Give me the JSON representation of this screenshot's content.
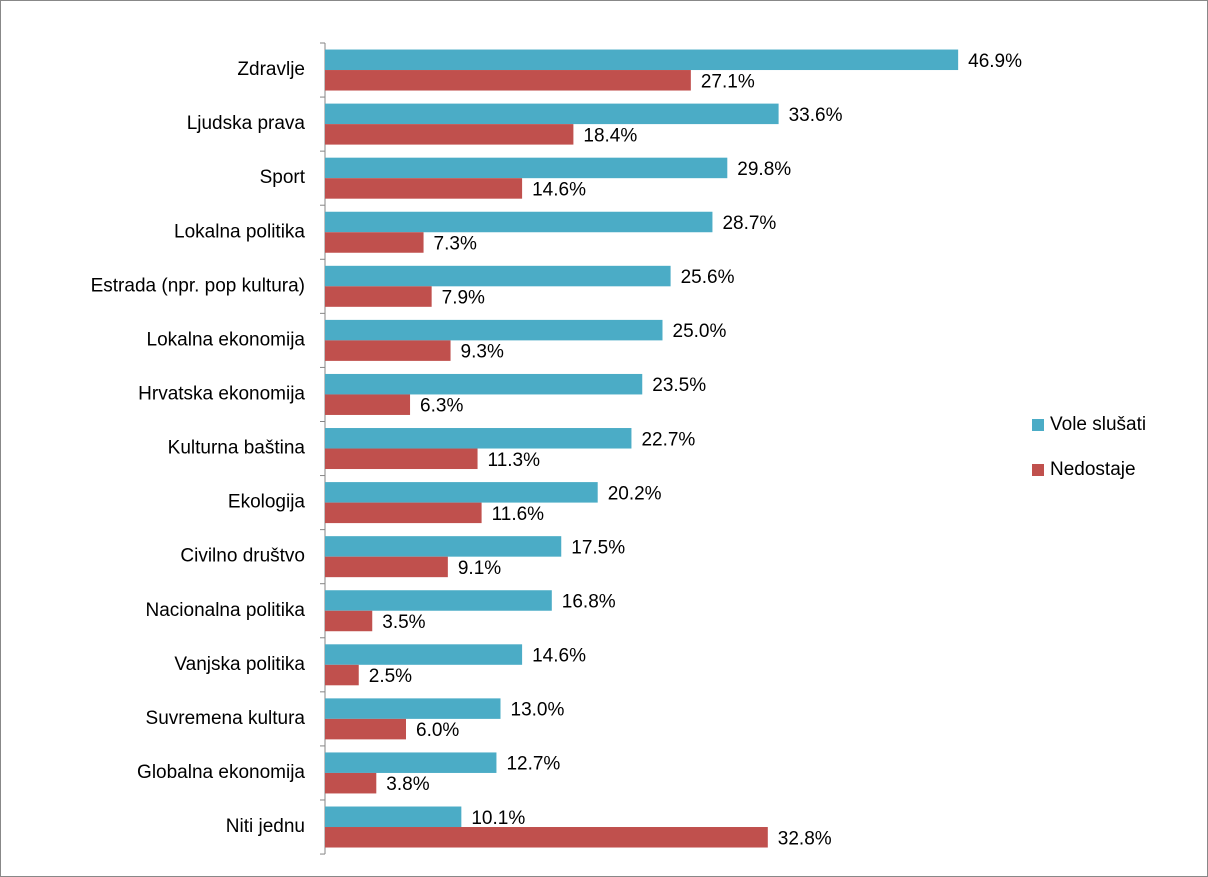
{
  "chart_data": {
    "type": "bar",
    "orientation": "horizontal",
    "categories": [
      "Zdravlje",
      "Ljudska prava",
      "Sport",
      "Lokalna politika",
      "Estrada (npr. pop kultura)",
      "Lokalna ekonomija",
      "Hrvatska ekonomija",
      "Kulturna baština",
      "Ekologija",
      "Civilno društvo",
      "Nacionalna politika",
      "Vanjska politika",
      "Suvremena kultura",
      "Globalna ekonomija",
      "Niti jednu"
    ],
    "series": [
      {
        "name": "Vole slušati",
        "color": "#4bacc6",
        "values": [
          46.9,
          33.6,
          29.8,
          28.7,
          25.6,
          25.0,
          23.5,
          22.7,
          20.2,
          17.5,
          16.8,
          14.6,
          13.0,
          12.7,
          10.1
        ],
        "value_labels": [
          "46.9%",
          "33.6%",
          "29.8%",
          "28.7%",
          "25.6%",
          "25.0%",
          "23.5%",
          "22.7%",
          "20.2%",
          "17.5%",
          "16.8%",
          "14.6%",
          "13.0%",
          "12.7%",
          "10.1%"
        ]
      },
      {
        "name": "Nedostaje",
        "color": "#c0504d",
        "values": [
          27.1,
          18.4,
          14.6,
          7.3,
          7.9,
          9.3,
          6.3,
          11.3,
          11.6,
          9.1,
          3.5,
          2.5,
          6.0,
          3.8,
          32.8
        ],
        "value_labels": [
          "27.1%",
          "18.4%",
          "14.6%",
          "7.3%",
          "7.9%",
          "9.3%",
          "6.3%",
          "11.3%",
          "11.6%",
          "9.1%",
          "3.5%",
          "2.5%",
          "6.0%",
          "3.8%",
          "32.8%"
        ]
      }
    ],
    "legend": "right"
  }
}
